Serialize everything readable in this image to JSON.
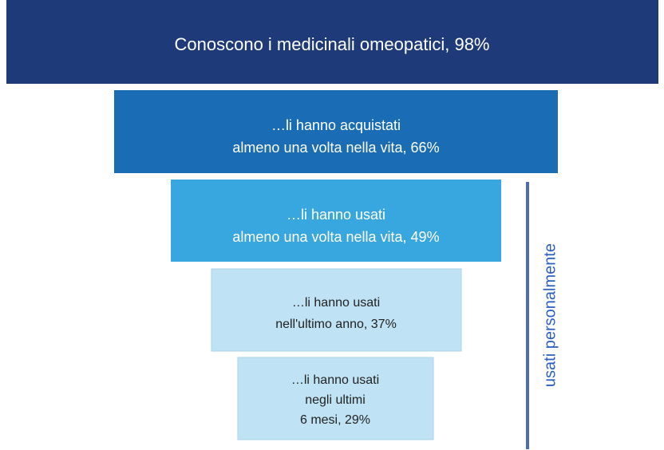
{
  "nodes": [
    {
      "lines": [
        "Conoscono i medicinali omeopatici, 98%"
      ]
    },
    {
      "lines": [
        "…li hanno acquistati",
        "almeno una volta nella vita, 66%"
      ]
    },
    {
      "lines": [
        "…li hanno usati",
        "almeno una volta nella vita, 49%"
      ]
    },
    {
      "lines": [
        "…li hanno usati",
        "nell'ultimo anno, 37%"
      ]
    },
    {
      "lines": [
        "…li hanno usati",
        "negli ultimi",
        "6 mesi, 29%"
      ]
    }
  ],
  "bracket": {
    "label": "usati personalmente"
  }
}
